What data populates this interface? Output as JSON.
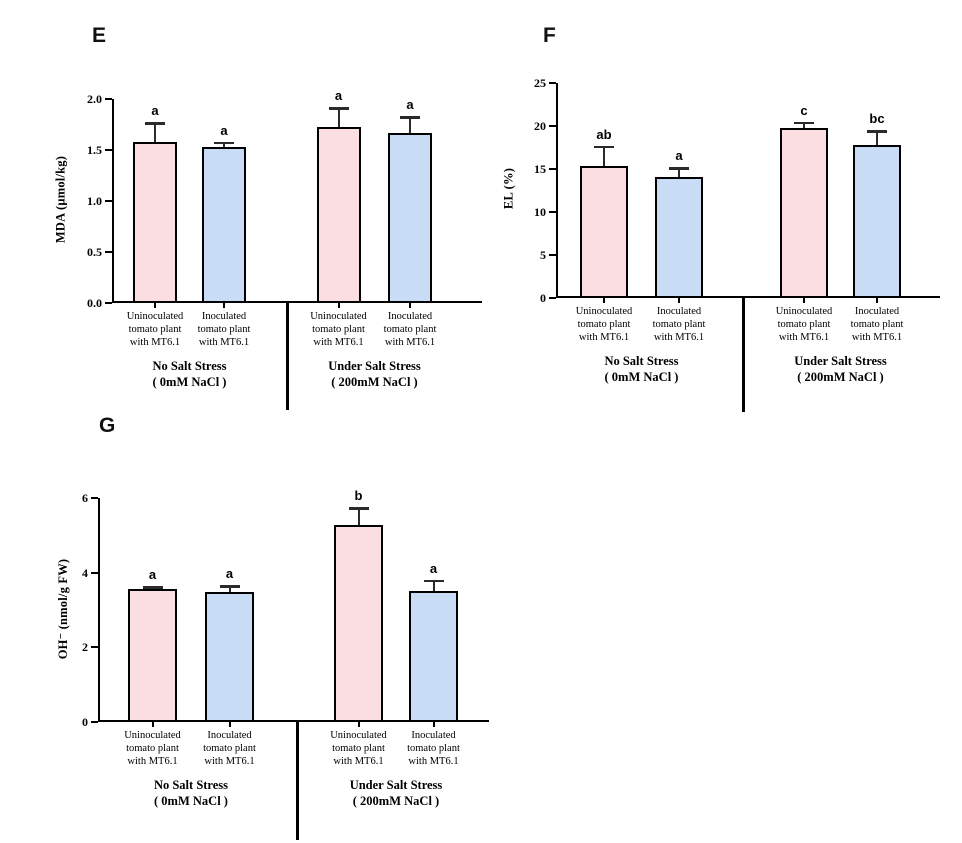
{
  "figure": {
    "description": "Three-panel bar chart figure comparing uninoculated and inoculated tomato plants with MT6.1 under no salt stress and salt stress",
    "background": "#ffffff"
  },
  "colors": {
    "uninoculated": "#fbdee2",
    "inoculated": "#c9dcf5",
    "axis": "#000000",
    "bar_border": "#000000"
  },
  "chart_data": [
    {
      "panel": "E",
      "type": "bar",
      "title": "",
      "xlabel": "",
      "ylabel": "MDA (µmol/kg)",
      "ylim": [
        0,
        2.0
      ],
      "yticks": [
        "0.0",
        "0.5",
        "1.0",
        "1.5",
        "2.0"
      ],
      "grid": false,
      "legend": false,
      "x_category_lines": [
        [
          "Uninoculated",
          "tomato plant",
          "with MT6.1"
        ],
        [
          "Inoculated",
          "tomato plant",
          "with MT6.1"
        ],
        [
          "Uninoculated",
          "tomato plant",
          "with MT6.1"
        ],
        [
          "Inoculated",
          "tomato plant",
          "with MT6.1"
        ]
      ],
      "group_titles": [
        [
          "No Salt Stress",
          "( 0mM NaCl )"
        ],
        [
          "Under Salt Stress",
          "( 200mM NaCl )"
        ]
      ],
      "bars": [
        {
          "value": 1.58,
          "error": 0.18,
          "sig_letter": "a",
          "fill": "uninoculated"
        },
        {
          "value": 1.53,
          "error": 0.04,
          "sig_letter": "a",
          "fill": "inoculated"
        },
        {
          "value": 1.73,
          "error": 0.18,
          "sig_letter": "a",
          "fill": "uninoculated"
        },
        {
          "value": 1.67,
          "error": 0.15,
          "sig_letter": "a",
          "fill": "inoculated"
        }
      ]
    },
    {
      "panel": "F",
      "type": "bar",
      "title": "",
      "xlabel": "",
      "ylabel": "EL (%)",
      "ylim": [
        0,
        25
      ],
      "yticks": [
        "0",
        "5",
        "10",
        "15",
        "20",
        "25"
      ],
      "grid": false,
      "legend": false,
      "x_category_lines": [
        [
          "Uninoculated",
          "tomato plant",
          "with MT6.1"
        ],
        [
          "Inoculated",
          "tomato plant",
          "with MT6.1"
        ],
        [
          "Uninoculated",
          "tomato plant",
          "with MT6.1"
        ],
        [
          "Inoculated",
          "tomato plant",
          "with MT6.1"
        ]
      ],
      "group_titles": [
        [
          "No Salt Stress",
          "( 0mM NaCl )"
        ],
        [
          "Under Salt Stress",
          "( 200mM NaCl )"
        ]
      ],
      "bars": [
        {
          "value": 15.3,
          "error": 2.3,
          "sig_letter": "ab",
          "fill": "uninoculated"
        },
        {
          "value": 14.1,
          "error": 1.0,
          "sig_letter": "a",
          "fill": "inoculated"
        },
        {
          "value": 19.8,
          "error": 0.6,
          "sig_letter": "c",
          "fill": "uninoculated"
        },
        {
          "value": 17.8,
          "error": 1.6,
          "sig_letter": "bc",
          "fill": "inoculated"
        }
      ]
    },
    {
      "panel": "G",
      "type": "bar",
      "title": "",
      "xlabel": "",
      "ylabel": "OH⁻ (nmol/g FW)",
      "ylim": [
        0,
        6
      ],
      "yticks": [
        "0",
        "2",
        "4",
        "6"
      ],
      "grid": false,
      "legend": false,
      "x_category_lines": [
        [
          "Uninoculated",
          "tomato plant",
          "with MT6.1"
        ],
        [
          "Inoculated",
          "tomato plant",
          "with MT6.1"
        ],
        [
          "Uninoculated",
          "tomato plant",
          "with MT6.1"
        ],
        [
          "Inoculated",
          "tomato plant",
          "with MT6.1"
        ]
      ],
      "group_titles": [
        [
          "No Salt Stress",
          "( 0mM NaCl )"
        ],
        [
          "Under Salt Stress",
          "( 200mM NaCl )"
        ]
      ],
      "bars": [
        {
          "value": 3.55,
          "error": 0.06,
          "sig_letter": "a",
          "fill": "uninoculated"
        },
        {
          "value": 3.48,
          "error": 0.15,
          "sig_letter": "a",
          "fill": "inoculated"
        },
        {
          "value": 5.27,
          "error": 0.45,
          "sig_letter": "b",
          "fill": "uninoculated"
        },
        {
          "value": 3.52,
          "error": 0.27,
          "sig_letter": "a",
          "fill": "inoculated"
        }
      ]
    }
  ]
}
